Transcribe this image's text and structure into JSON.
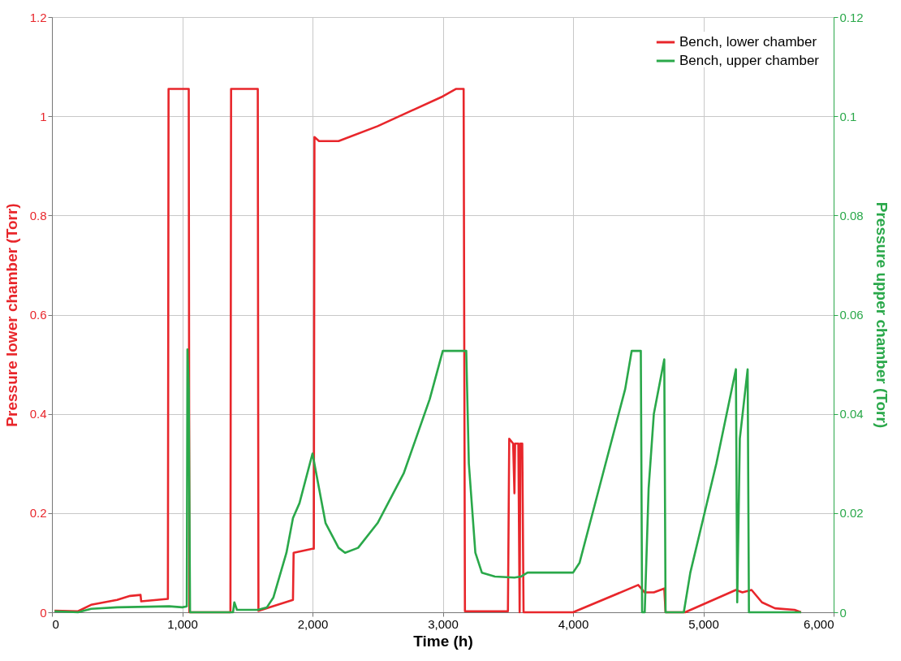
{
  "chart_data": {
    "type": "line",
    "xlabel": "Time (h)",
    "ylabel": "Pressure lower chamber (Torr)",
    "y2label": "Pressure upper chamber (Torr)",
    "xlim": [
      0,
      6000
    ],
    "xticks": [
      0,
      {
        "value": 1000,
        "label": "1,000"
      },
      {
        "value": 2000,
        "label": "2,000"
      },
      {
        "value": 3000,
        "label": "3,000"
      },
      {
        "value": 4000,
        "label": "4,000"
      },
      {
        "value": 5000,
        "label": "5,000"
      },
      {
        "value": 6000,
        "label": "6,000"
      }
    ],
    "ylim": [
      0,
      1.2
    ],
    "yticks": [
      0,
      0.2,
      0.4,
      0.6,
      0.8,
      1,
      1.2
    ],
    "y2lim": [
      0,
      0.12
    ],
    "y2ticks": [
      0,
      0.02,
      0.04,
      0.06,
      0.08,
      0.1,
      0.12
    ],
    "grid": true,
    "legend": "top right",
    "line_style": "solid",
    "marker": "none",
    "series": [
      {
        "name": "Bench, lower chamber",
        "color": "#e8262b",
        "x": [
          20,
          200,
          300,
          500,
          600,
          680,
          685,
          890,
          895,
          1050,
          1055,
          1370,
          1375,
          1580,
          1585,
          1850,
          1855,
          2000,
          2010,
          2015,
          2050,
          2200,
          2500,
          3000,
          3100,
          3160,
          3170,
          3500,
          3510,
          3540,
          3550,
          3555,
          3580,
          3590,
          3595,
          3610,
          3620,
          4000,
          4500,
          4550,
          4620,
          4700,
          4710,
          4860,
          5250,
          5300,
          5370,
          5450,
          5550,
          5700,
          5750
        ],
        "values": [
          0.003,
          0.002,
          0.015,
          0.025,
          0.033,
          0.035,
          0.022,
          0.027,
          1.055,
          1.055,
          0,
          0,
          1.055,
          1.055,
          0.003,
          0.025,
          0.12,
          0.128,
          0.128,
          0.958,
          0.95,
          0.95,
          0.98,
          1.04,
          1.055,
          1.055,
          0.002,
          0.002,
          0.35,
          0.34,
          0.24,
          0.34,
          0.34,
          0,
          0.34,
          0.34,
          0,
          0,
          0.055,
          0.04,
          0.04,
          0.048,
          0,
          0,
          0.045,
          0.04,
          0.045,
          0.02,
          0.008,
          0.005,
          0
        ]
      },
      {
        "name": "Bench, upper chamber",
        "color": "#2aa84a",
        "axis": "y2",
        "x": [
          20,
          200,
          300,
          500,
          900,
          1000,
          1035,
          1040,
          1050,
          1060,
          1390,
          1400,
          1420,
          1580,
          1650,
          1700,
          1800,
          1850,
          1900,
          2000,
          2050,
          2100,
          2200,
          2250,
          2350,
          2500,
          2700,
          2900,
          3000,
          3180,
          3200,
          3250,
          3300,
          3400,
          3550,
          3600,
          3650,
          4000,
          4050,
          4200,
          4400,
          4450,
          4520,
          4530,
          4550,
          4580,
          4620,
          4700,
          4710,
          4850,
          4900,
          5100,
          5250,
          5260,
          5280,
          5340,
          5350,
          5750
        ],
        "values": [
          0.0002,
          0,
          0.0007,
          0.001,
          0.0012,
          0.001,
          0.0012,
          0.053,
          0.045,
          0,
          0,
          0.002,
          0.0005,
          0.0005,
          0.001,
          0.003,
          0.012,
          0.019,
          0.022,
          0.032,
          0.025,
          0.018,
          0.013,
          0.012,
          0.013,
          0.018,
          0.028,
          0.043,
          0.0527,
          0.0527,
          0.03,
          0.012,
          0.008,
          0.0072,
          0.007,
          0.0072,
          0.008,
          0.008,
          0.01,
          0.025,
          0.045,
          0.0527,
          0.0527,
          0,
          0,
          0.025,
          0.04,
          0.051,
          0,
          0,
          0.008,
          0.03,
          0.049,
          0.002,
          0.035,
          0.049,
          0,
          0
        ]
      }
    ]
  }
}
